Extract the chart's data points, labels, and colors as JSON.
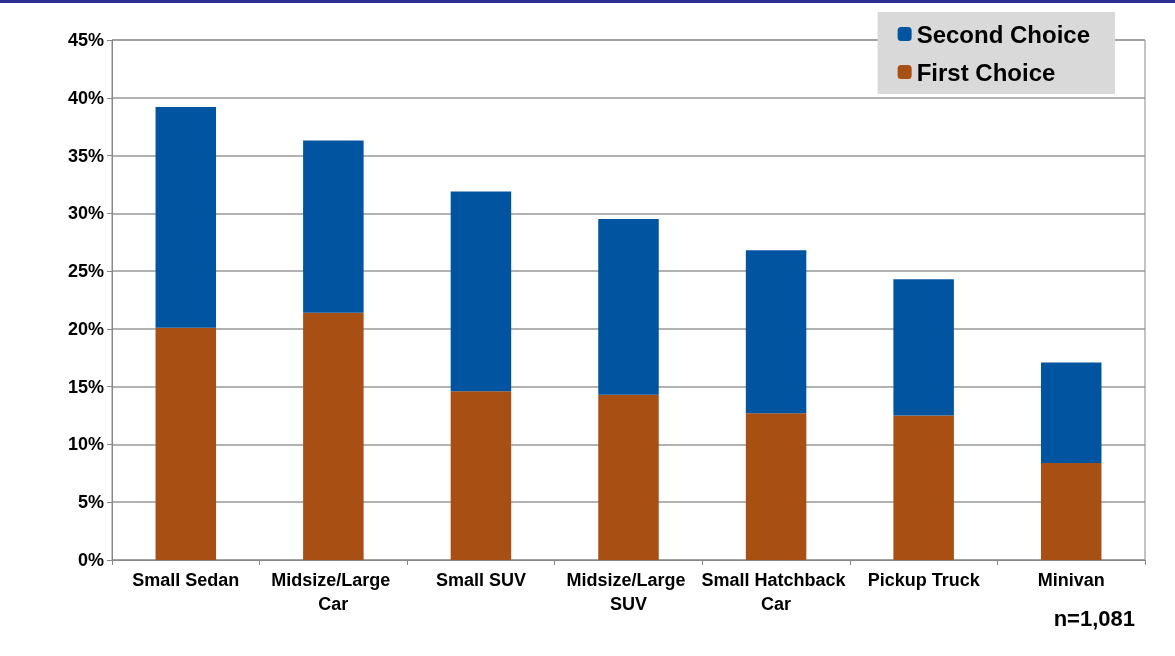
{
  "chart_data": {
    "type": "bar",
    "stacked": true,
    "categories": [
      "Small Sedan",
      "Midsize/Large Car",
      "Small SUV",
      "Midsize/Large SUV",
      "Small Hatchback Car",
      "Pickup Truck",
      "Minivan"
    ],
    "series": [
      {
        "name": "First Choice",
        "color": "#a84f14",
        "values": [
          20.1,
          21.4,
          14.6,
          14.3,
          12.7,
          12.5,
          8.4
        ]
      },
      {
        "name": "Second Choice",
        "color": "#0054a0",
        "values": [
          19.1,
          14.9,
          17.3,
          15.2,
          14.1,
          11.8,
          8.7
        ]
      }
    ],
    "ylim": [
      0,
      45
    ],
    "yticks": [
      {
        "value": 0,
        "label": "0%"
      },
      {
        "value": 5,
        "label": "5%"
      },
      {
        "value": 10,
        "label": "10%"
      },
      {
        "value": 15,
        "label": "15%"
      },
      {
        "value": 20,
        "label": "20%"
      },
      {
        "value": 25,
        "label": "25%"
      },
      {
        "value": 30,
        "label": "30%"
      },
      {
        "value": 35,
        "label": "35%"
      },
      {
        "value": 40,
        "label": "40%"
      },
      {
        "value": 45,
        "label": "45%"
      }
    ],
    "grid": "y",
    "legend": "top right",
    "annotations": [
      "n=1,081"
    ]
  }
}
